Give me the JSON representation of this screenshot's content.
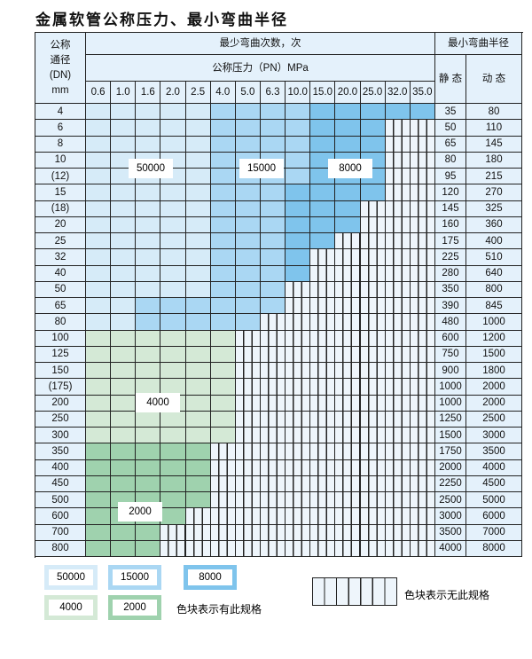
{
  "title": "金属软管公称压力、最小弯曲半径",
  "header": {
    "dn_label": "公称\n通径\n(DN)\nmm",
    "min_bend_cycles": "最少弯曲次数，次",
    "pressure_label": "公称压力（PN）MPa",
    "min_radius": "最小弯曲半径",
    "static": "静 态",
    "dynamic": "动 态"
  },
  "pressures": [
    "0.6",
    "1.0",
    "1.6",
    "2.0",
    "2.5",
    "4.0",
    "5.0",
    "6.3",
    "10.0",
    "15.0",
    "20.0",
    "25.0",
    "32.0",
    "35.0"
  ],
  "rows": [
    {
      "dn": "4",
      "static": "35",
      "dynamic": "80",
      "cells": "LLLLLMMMMDDDDD"
    },
    {
      "dn": "6",
      "static": "50",
      "dynamic": "110",
      "cells": "LLLLLMMMMDDDXX"
    },
    {
      "dn": "8",
      "static": "65",
      "dynamic": "145",
      "cells": "LLLLLMMMMDDDXX"
    },
    {
      "dn": "10",
      "static": "80",
      "dynamic": "180",
      "cells": "LLLLLMMMMDDDXX"
    },
    {
      "dn": "(12)",
      "static": "95",
      "dynamic": "215",
      "cells": "LLLLLMMMMDDDXX"
    },
    {
      "dn": "15",
      "static": "120",
      "dynamic": "270",
      "cells": "LLLLLMMMDDDDXX"
    },
    {
      "dn": "(18)",
      "static": "145",
      "dynamic": "325",
      "cells": "LLLLLMMMDDDXXX"
    },
    {
      "dn": "20",
      "static": "160",
      "dynamic": "360",
      "cells": "LLLLLMMMDDDXXX"
    },
    {
      "dn": "25",
      "static": "175",
      "dynamic": "400",
      "cells": "LLLLLMMMDDXXXX"
    },
    {
      "dn": "32",
      "static": "225",
      "dynamic": "510",
      "cells": "LLLLLMMMDXXXXX"
    },
    {
      "dn": "40",
      "static": "280",
      "dynamic": "640",
      "cells": "LLLLLMMMDXXXXX"
    },
    {
      "dn": "50",
      "static": "350",
      "dynamic": "800",
      "cells": "LLLLLMMMXXXXXX"
    },
    {
      "dn": "65",
      "static": "390",
      "dynamic": "845",
      "cells": "LLMMMMMMXXXXXX"
    },
    {
      "dn": "80",
      "static": "480",
      "dynamic": "1000",
      "cells": "LLMMMMMXXXXXXX"
    },
    {
      "dn": "100",
      "static": "600",
      "dynamic": "1200",
      "cells": "GGGGGGXXXXXXXX"
    },
    {
      "dn": "125",
      "static": "750",
      "dynamic": "1500",
      "cells": "GGGGGGXXXXXXXX"
    },
    {
      "dn": "150",
      "static": "900",
      "dynamic": "1800",
      "cells": "GGGGGGXXXXXXXX"
    },
    {
      "dn": "(175)",
      "static": "1000",
      "dynamic": "2000",
      "cells": "GGGGGGXXXXXXXX"
    },
    {
      "dn": "200",
      "static": "1000",
      "dynamic": "2000",
      "cells": "GGGGGGXXXXXXXX"
    },
    {
      "dn": "250",
      "static": "1250",
      "dynamic": "2500",
      "cells": "GGGGGGXXXXXXXX"
    },
    {
      "dn": "300",
      "static": "1500",
      "dynamic": "3000",
      "cells": "GGGGGGXXXXXXXX"
    },
    {
      "dn": "350",
      "static": "1750",
      "dynamic": "3500",
      "cells": "NNNNNXXXXXXXXX"
    },
    {
      "dn": "400",
      "static": "2000",
      "dynamic": "4000",
      "cells": "NNNNNXXXXXXXXX"
    },
    {
      "dn": "450",
      "static": "2250",
      "dynamic": "4500",
      "cells": "NNNNNXXXXXXXXX"
    },
    {
      "dn": "500",
      "static": "2500",
      "dynamic": "5000",
      "cells": "NNNNNXXXXXXXXX"
    },
    {
      "dn": "600",
      "static": "3000",
      "dynamic": "6000",
      "cells": "NNNNXXXXXXXXXX"
    },
    {
      "dn": "700",
      "static": "3500",
      "dynamic": "7000",
      "cells": "NNNXXXXXXXXXXX"
    },
    {
      "dn": "800",
      "static": "4000",
      "dynamic": "8000",
      "cells": "NNNXXXXXXXXXXX"
    }
  ],
  "region_labels": {
    "l50000": "50000",
    "l15000": "15000",
    "l8000": "8000",
    "l4000": "4000",
    "l2000": "2000"
  },
  "legend": {
    "items": [
      "50000",
      "15000",
      "8000",
      "4000",
      "2000"
    ],
    "has_spec": "色块表示有此规格",
    "no_spec": "色块表示无此规格"
  },
  "colors": {
    "50000": "#d6ebf8",
    "15000": "#aad7f3",
    "8000": "#7fc4ec",
    "4000": "#d4e9d6",
    "2000": "#9fd2ae",
    "header": "#e4f1fb"
  }
}
